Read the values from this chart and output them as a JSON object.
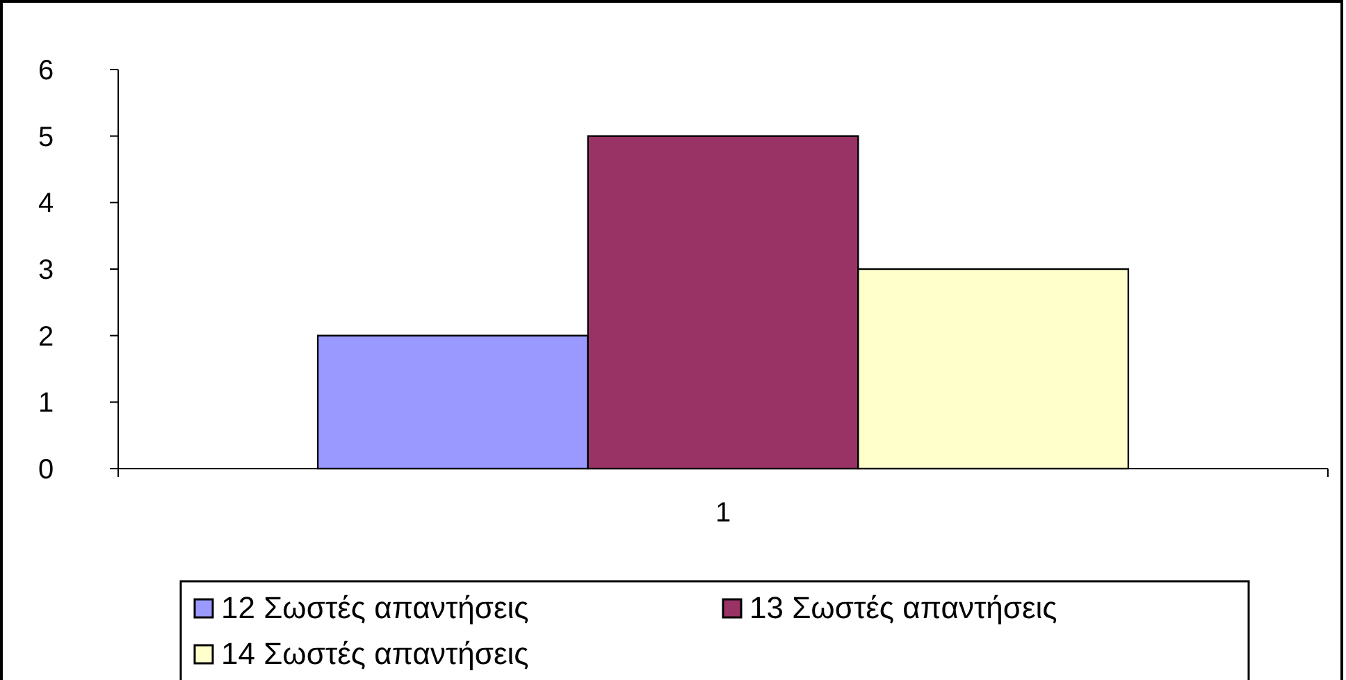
{
  "chart_data": {
    "type": "bar",
    "categories": [
      "1"
    ],
    "series": [
      {
        "name": "12 Σωστές απαντήσεις",
        "color": "#9999ff",
        "values": [
          2
        ]
      },
      {
        "name": "13 Σωστές απαντήσεις",
        "color": "#993366",
        "values": [
          5
        ]
      },
      {
        "name": "14 Σωστές απαντήσεις",
        "color": "#ffffcc",
        "values": [
          3
        ]
      }
    ],
    "ylim": [
      0,
      6
    ],
    "yticks": [
      0,
      1,
      2,
      3,
      4,
      5,
      6
    ],
    "grid": false,
    "legend": "bottom"
  }
}
